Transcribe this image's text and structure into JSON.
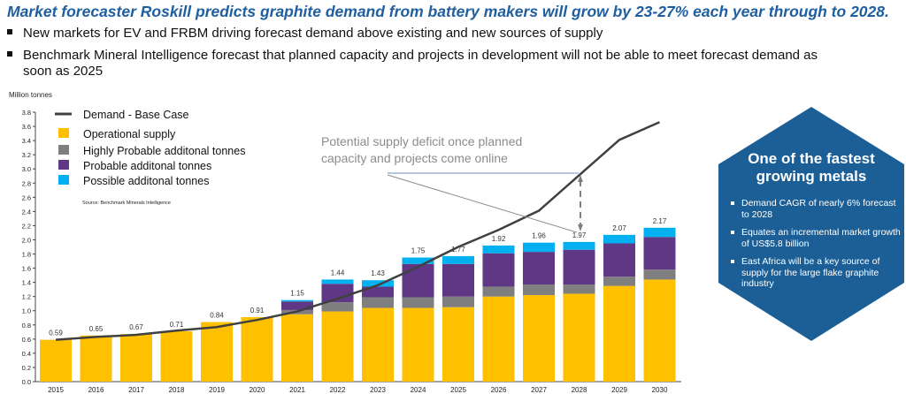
{
  "title": "Market forecaster Roskill predicts graphite demand from battery makers will grow by 23-27% each year through to 2028.",
  "bullets": [
    "New markets for EV and FRBM driving forecast demand above existing and new sources of supply",
    "Benchmark Mineral Intelligence forecast that planned capacity and projects in development will not be able to meet forecast demand as soon as 2025"
  ],
  "hexagon": {
    "color": "#1b5f96",
    "title_line1": "One of the fastest",
    "title_line2": "growing metals",
    "items": [
      "Demand CAGR of nearly 6% forecast to 2028",
      "Equates an incremental market growth of US$5.8 billion",
      "East Africa will be a key source of supply for the large flake graphite industry"
    ]
  },
  "chart_data": {
    "type": "bar",
    "stacked": true,
    "ylabel": "Million tonnes",
    "ylim": [
      0,
      3.8
    ],
    "yticks": [
      "0.0",
      "0.2",
      "0.4",
      "0.6",
      "0.8",
      "1.0",
      "1.2",
      "1.4",
      "1.6",
      "1.8",
      "2.0",
      "2.2",
      "2.4",
      "2.6",
      "2.8",
      "3.0",
      "3.2",
      "3.4",
      "3.6",
      "3.8"
    ],
    "categories": [
      "2015",
      "2016",
      "2017",
      "2018",
      "2019",
      "2020",
      "2021",
      "2022",
      "2023",
      "2024",
      "2025",
      "2026",
      "2027",
      "2028",
      "2029",
      "2030"
    ],
    "series": [
      {
        "name": "Operational supply",
        "color": "#ffc000",
        "values": [
          0.59,
          0.65,
          0.67,
          0.71,
          0.84,
          0.91,
          0.95,
          0.99,
          1.04,
          1.04,
          1.05,
          1.2,
          1.22,
          1.24,
          1.35,
          1.44
        ]
      },
      {
        "name": "Highly Probable additonal tonnes",
        "color": "#7f7f7f",
        "values": [
          0,
          0,
          0,
          0,
          0,
          0,
          0.06,
          0.13,
          0.15,
          0.15,
          0.15,
          0.14,
          0.15,
          0.13,
          0.13,
          0.14
        ]
      },
      {
        "name": "Probable additonal tonnes",
        "color": "#5f3785",
        "values": [
          0,
          0,
          0,
          0,
          0,
          0,
          0.12,
          0.26,
          0.15,
          0.47,
          0.46,
          0.47,
          0.46,
          0.49,
          0.47,
          0.46
        ]
      },
      {
        "name": "Possible additonal tonnes",
        "color": "#00b0f0",
        "values": [
          0,
          0,
          0,
          0,
          0,
          0,
          0.02,
          0.06,
          0.09,
          0.09,
          0.11,
          0.11,
          0.13,
          0.11,
          0.12,
          0.13
        ]
      }
    ],
    "totals": [
      "0.59",
      "0.65",
      "0.67",
      "0.71",
      "0.84",
      "0.91",
      "1.15",
      "1.44",
      "1.43",
      "1.75",
      "1.77",
      "1.92",
      "1.96",
      "1.97",
      "2.07",
      "2.17"
    ],
    "line": {
      "name": "Demand - Base Case",
      "color": "#404040",
      "values": [
        0.59,
        0.63,
        0.66,
        0.72,
        0.77,
        0.87,
        0.99,
        1.17,
        1.36,
        1.62,
        1.9,
        2.14,
        2.41,
        2.91,
        3.41,
        3.66
      ]
    },
    "source": "Source: Benchmark Minerals Intelligence",
    "annotation": "Potential supply deficit once planned capacity and projects come online",
    "annotation_line1": "Potential supply deficit once planned",
    "annotation_line2": "capacity and projects come online",
    "grid": false,
    "legend": "top-left"
  }
}
